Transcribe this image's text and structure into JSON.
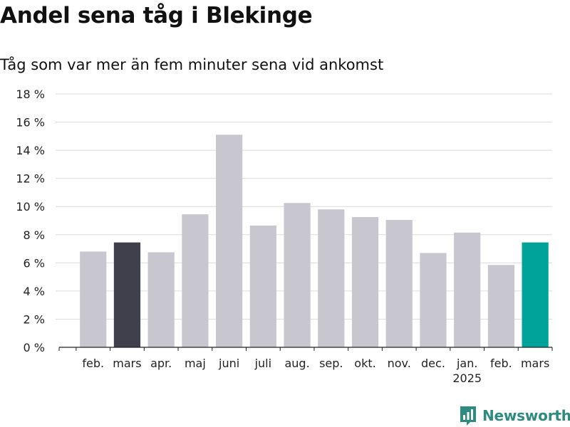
{
  "title": "Andel sena tåg i Blekinge",
  "subtitle": "Tåg som var mer än fem minuter sena vid ankomst",
  "brand": {
    "name": "Newsworthy",
    "icon": "newsworthy-logo-icon",
    "color": "#2e8b80"
  },
  "chart_data": {
    "type": "bar",
    "categories": [
      "feb.",
      "mars",
      "apr.",
      "maj",
      "juni",
      "juli",
      "aug.",
      "sep.",
      "okt.",
      "nov.",
      "dec.",
      "jan.",
      "feb.",
      "mars"
    ],
    "category_sublabels": [
      "",
      "",
      "",
      "",
      "",
      "",
      "",
      "",
      "",
      "",
      "",
      "2025",
      "",
      ""
    ],
    "values": [
      6.8,
      7.45,
      6.75,
      9.45,
      15.1,
      8.65,
      10.25,
      9.8,
      9.25,
      9.05,
      6.7,
      8.15,
      5.85,
      7.45
    ],
    "highlight": {
      "1": "#403f4c",
      "13": "#00a39a"
    },
    "default_color": "#c8c7d0",
    "ylim": [
      0,
      18
    ],
    "yticks": [
      0,
      2,
      4,
      6,
      8,
      10,
      12,
      14,
      16,
      18
    ],
    "ytick_suffix": " %",
    "grid": true,
    "legend": "none",
    "xlabel": "",
    "ylabel": ""
  }
}
